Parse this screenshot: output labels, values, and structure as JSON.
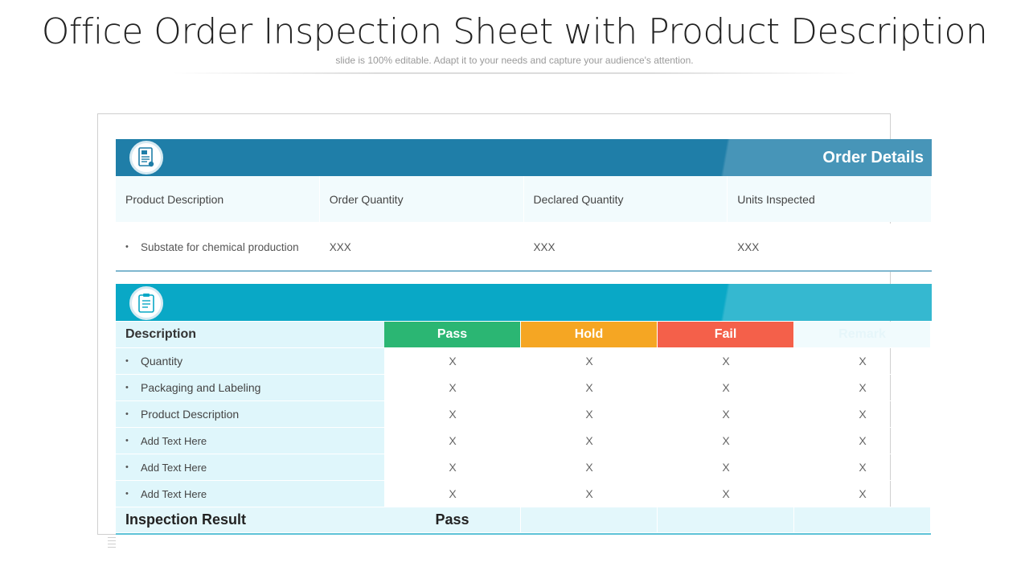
{
  "header": {
    "title": "Office Order Inspection Sheet with Product Description",
    "subtitle": "slide is 100% editable. Adapt it to your needs and capture your audience's attention."
  },
  "order_details": {
    "title": "Order Details",
    "icon": "document-icon",
    "columns": [
      "Product Description",
      "Order Quantity",
      "Declared Quantity",
      "Units Inspected"
    ],
    "row": {
      "bullet": "•",
      "product": "Substate for chemical production",
      "order_qty": "XXX",
      "declared_qty": "XXX",
      "units_inspected": "XXX"
    }
  },
  "inspection": {
    "icon": "clipboard-icon",
    "headers": {
      "description": "Description",
      "pass": "Pass",
      "hold": "Hold",
      "fail": "Fail",
      "remark": "Remark"
    },
    "rows": [
      {
        "bullet": "•",
        "label": "Quantity",
        "pass": "X",
        "hold": "X",
        "fail": "X",
        "remark": "X"
      },
      {
        "bullet": "•",
        "label": "Packaging and Labeling",
        "pass": "X",
        "hold": "X",
        "fail": "X",
        "remark": "X"
      },
      {
        "bullet": "•",
        "label": "Product Description",
        "pass": "X",
        "hold": "X",
        "fail": "X",
        "remark": "X"
      },
      {
        "bullet": "•",
        "label": "Add Text Here",
        "pass": "X",
        "hold": "X",
        "fail": "X",
        "remark": "X"
      },
      {
        "bullet": "•",
        "label": "Add Text Here",
        "pass": "X",
        "hold": "X",
        "fail": "X",
        "remark": "X"
      },
      {
        "bullet": "•",
        "label": "Add Text Here",
        "pass": "X",
        "hold": "X",
        "fail": "X",
        "remark": "X"
      }
    ],
    "result": {
      "label": "Inspection Result",
      "value": "Pass"
    }
  },
  "colors": {
    "order_band": "#1f7ea8",
    "inspection_band": "#09a8c6",
    "pass": "#2bb673",
    "hold": "#f5a623",
    "fail": "#f4604a",
    "row_tint": "#dff6fb"
  }
}
